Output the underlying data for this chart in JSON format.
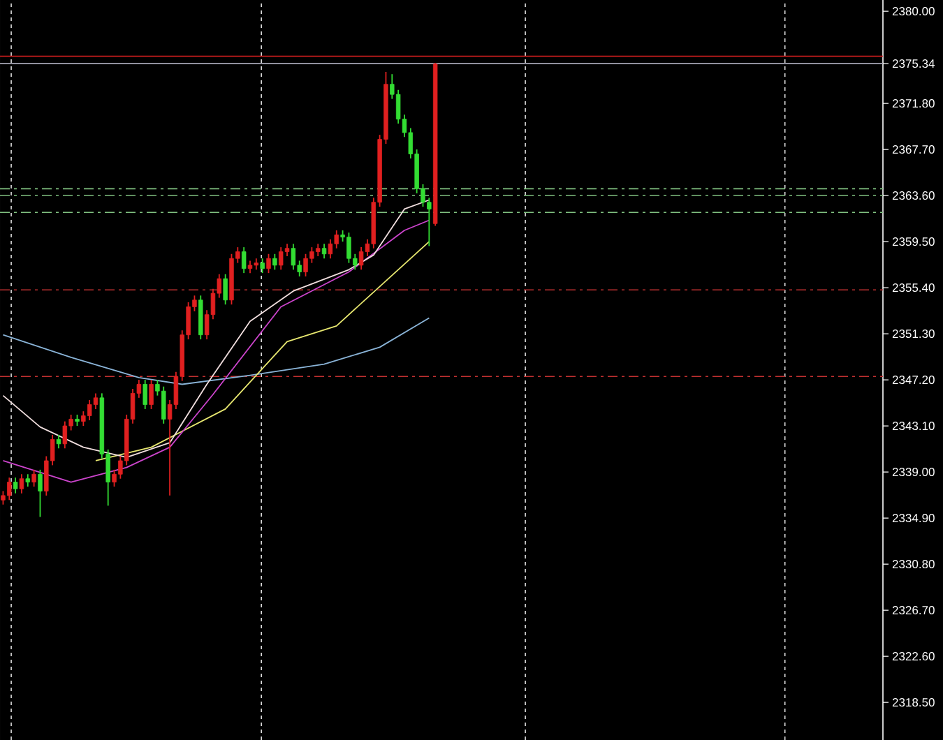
{
  "chart_data": {
    "type": "candlestick",
    "tick_labels": "y",
    "ylim": [
      2315.15,
      2381.0
    ],
    "categories": [
      null,
      null,
      null,
      null,
      null,
      null,
      null,
      null,
      null,
      null,
      null,
      null,
      null,
      null,
      null,
      null,
      null,
      null,
      null,
      null,
      null,
      null,
      null,
      null,
      null,
      null,
      null,
      null,
      null,
      null,
      null,
      null,
      null,
      null,
      null,
      null,
      null,
      null,
      null,
      null,
      null,
      null,
      null,
      null,
      null,
      null,
      null,
      null,
      null,
      null,
      null,
      null,
      null,
      null,
      null,
      null,
      null,
      null,
      null,
      null,
      null,
      null,
      null,
      null,
      null,
      null,
      null,
      null,
      null,
      null,
      null,
      null,
      null,
      null,
      null,
      null,
      null,
      null,
      null,
      null,
      null,
      null,
      null,
      null,
      null,
      null,
      null,
      null,
      null,
      null,
      null,
      null,
      null,
      null,
      null,
      null,
      null,
      null,
      null,
      null,
      null,
      null,
      null,
      null,
      null,
      null,
      null,
      null,
      null,
      null,
      null,
      null,
      null,
      null,
      null,
      null,
      null,
      null,
      null,
      null,
      null,
      null,
      null,
      null,
      null,
      null,
      null,
      null,
      null,
      null,
      null,
      null,
      null,
      null,
      null,
      null,
      null,
      null,
      null,
      null,
      null,
      null,
      null
    ],
    "ohlc": [
      [
        2336.5,
        2337.3,
        2336.1,
        2336.9
      ],
      [
        2336.9,
        2338.5,
        2336.5,
        2338.1
      ],
      [
        2338.1,
        2338.5,
        2337.1,
        2337.5
      ],
      [
        2337.5,
        2338.8,
        2337.1,
        2338.4
      ],
      [
        2338.4,
        2338.8,
        2337.7,
        2338.1
      ],
      [
        2338.1,
        2339.2,
        2337.7,
        2338.8
      ],
      [
        2338.8,
        2339.2,
        2335.0,
        2337.3
      ],
      [
        2337.3,
        2340.4,
        2336.9,
        2340.0
      ],
      [
        2340.0,
        2342.3,
        2339.6,
        2341.9
      ],
      [
        2341.9,
        2342.3,
        2341.1,
        2341.5
      ],
      [
        2341.5,
        2343.5,
        2341.1,
        2343.1
      ],
      [
        2343.1,
        2344.1,
        2342.7,
        2343.7
      ],
      [
        2343.7,
        2344.1,
        2343.1,
        2343.5
      ],
      [
        2343.5,
        2344.4,
        2343.1,
        2344.0
      ],
      [
        2344.0,
        2345.4,
        2343.6,
        2345.0
      ],
      [
        2345.0,
        2346.0,
        2344.6,
        2345.6
      ],
      [
        2345.6,
        2346.0,
        2340.2,
        2340.6
      ],
      [
        2340.6,
        2341.0,
        2336.0,
        2338.1
      ],
      [
        2338.1,
        2339.2,
        2337.7,
        2338.8
      ],
      [
        2338.8,
        2340.4,
        2338.4,
        2340.0
      ],
      [
        2340.0,
        2344.1,
        2339.6,
        2343.7
      ],
      [
        2343.7,
        2346.4,
        2343.3,
        2346.0
      ],
      [
        2346.0,
        2347.2,
        2345.6,
        2346.8
      ],
      [
        2346.8,
        2347.2,
        2344.6,
        2345.0
      ],
      [
        2345.0,
        2347.2,
        2344.6,
        2346.8
      ],
      [
        2346.8,
        2347.2,
        2345.8,
        2346.2
      ],
      [
        2346.2,
        2346.6,
        2343.3,
        2343.7
      ],
      [
        2343.7,
        2345.4,
        2336.9,
        2345.0
      ],
      [
        2345.0,
        2347.9,
        2344.6,
        2347.5
      ],
      [
        2347.5,
        2351.6,
        2347.1,
        2351.2
      ],
      [
        2351.2,
        2354.1,
        2350.8,
        2353.7
      ],
      [
        2353.7,
        2354.7,
        2353.3,
        2354.3
      ],
      [
        2354.3,
        2354.7,
        2350.8,
        2351.2
      ],
      [
        2351.2,
        2353.4,
        2350.8,
        2353.0
      ],
      [
        2353.0,
        2355.3,
        2352.6,
        2354.9
      ],
      [
        2354.9,
        2356.6,
        2354.5,
        2356.2
      ],
      [
        2356.2,
        2356.6,
        2353.9,
        2354.3
      ],
      [
        2354.3,
        2358.4,
        2353.9,
        2358.0
      ],
      [
        2358.0,
        2359.0,
        2357.6,
        2358.6
      ],
      [
        2358.6,
        2359.0,
        2356.7,
        2357.1
      ],
      [
        2357.1,
        2357.8,
        2356.7,
        2357.4
      ],
      [
        2357.4,
        2358.0,
        2357.0,
        2357.6
      ],
      [
        2357.6,
        2358.0,
        2356.7,
        2357.1
      ],
      [
        2357.1,
        2358.4,
        2356.7,
        2358.0
      ],
      [
        2358.0,
        2358.4,
        2357.0,
        2357.4
      ],
      [
        2357.4,
        2359.0,
        2357.0,
        2358.6
      ],
      [
        2358.6,
        2359.3,
        2358.2,
        2358.9
      ],
      [
        2358.9,
        2359.3,
        2357.0,
        2357.4
      ],
      [
        2357.4,
        2357.8,
        2356.4,
        2356.8
      ],
      [
        2356.8,
        2358.4,
        2356.4,
        2358.0
      ],
      [
        2358.0,
        2359.0,
        2357.6,
        2358.6
      ],
      [
        2358.6,
        2359.3,
        2358.2,
        2358.9
      ],
      [
        2358.9,
        2359.3,
        2358.0,
        2358.4
      ],
      [
        2358.4,
        2359.7,
        2358.0,
        2359.3
      ],
      [
        2359.3,
        2360.5,
        2358.9,
        2360.1
      ],
      [
        2360.1,
        2360.5,
        2359.5,
        2359.9
      ],
      [
        2359.9,
        2360.3,
        2357.6,
        2358.0
      ],
      [
        2358.0,
        2358.4,
        2357.0,
        2357.4
      ],
      [
        2357.4,
        2359.0,
        2357.0,
        2358.6
      ],
      [
        2358.6,
        2359.7,
        2358.2,
        2359.3
      ],
      [
        2359.3,
        2363.4,
        2358.9,
        2363.0
      ],
      [
        2363.0,
        2369.0,
        2362.6,
        2368.6
      ],
      [
        2368.6,
        2374.6,
        2368.2,
        2373.5
      ],
      [
        2373.5,
        2374.4,
        2372.2,
        2372.6
      ],
      [
        2372.6,
        2373.0,
        2370.0,
        2370.4
      ],
      [
        2370.4,
        2370.8,
        2368.8,
        2369.2
      ],
      [
        2369.2,
        2369.6,
        2366.9,
        2367.3
      ],
      [
        2367.3,
        2367.7,
        2363.8,
        2364.2
      ],
      [
        2364.2,
        2364.6,
        2362.6,
        2363.0
      ],
      [
        2363.0,
        2363.4,
        2359.1,
        2362.4
      ],
      [
        2361.1,
        2375.4,
        2360.9,
        2375.3
      ],
      null,
      null,
      null,
      null,
      null,
      null,
      null,
      null,
      null,
      null,
      null,
      null,
      null,
      null,
      null,
      null,
      null,
      null,
      null,
      null,
      null,
      null,
      null,
      null,
      null,
      null,
      null,
      null,
      null,
      null,
      null,
      null,
      null,
      null,
      null,
      null,
      null,
      null,
      null,
      null,
      null,
      null,
      null,
      null,
      null,
      null,
      null,
      null,
      null,
      null,
      null,
      null,
      null,
      null,
      null,
      null,
      null,
      null,
      null,
      null,
      null,
      null,
      null,
      null,
      null,
      null,
      null,
      null,
      null,
      null,
      null,
      null
    ],
    "colors": [
      "#e02020",
      "#e02020",
      "#33dd33",
      "#e02020",
      "#33dd33",
      "#e02020",
      "#33dd33",
      "#e02020",
      "#e02020",
      "#33dd33",
      "#e02020",
      "#e02020",
      "#33dd33",
      "#e02020",
      "#e02020",
      "#e02020",
      "#33dd33",
      "#33dd33",
      "#e02020",
      "#e02020",
      "#e02020",
      "#e02020",
      "#e02020",
      "#33dd33",
      "#e02020",
      "#33dd33",
      "#33dd33",
      "#e02020",
      "#e02020",
      "#e02020",
      "#e02020",
      "#e02020",
      "#33dd33",
      "#e02020",
      "#e02020",
      "#e02020",
      "#33dd33",
      "#e02020",
      "#e02020",
      "#33dd33",
      "#e02020",
      "#e02020",
      "#33dd33",
      "#e02020",
      "#33dd33",
      "#e02020",
      "#e02020",
      "#33dd33",
      "#33dd33",
      "#e02020",
      "#e02020",
      "#e02020",
      "#33dd33",
      "#e02020",
      "#e02020",
      "#33dd33",
      "#33dd33",
      "#33dd33",
      "#e02020",
      "#e02020",
      "#e02020",
      "#e02020",
      "#e02020",
      "#33dd33",
      "#33dd33",
      "#33dd33",
      "#33dd33",
      "#33dd33",
      "#33dd33",
      "#33dd33",
      "#e02020",
      null,
      null,
      null,
      null,
      null,
      null,
      null,
      null,
      null,
      null,
      null,
      null,
      null,
      null,
      null,
      null,
      null,
      null,
      null,
      null,
      null,
      null,
      null,
      null,
      null,
      null,
      null,
      null,
      null,
      null,
      null,
      null,
      null,
      null,
      null,
      null,
      null,
      null,
      null,
      null,
      null,
      null,
      null,
      null,
      null,
      null,
      null,
      null,
      null,
      null,
      null,
      null,
      null,
      null,
      null,
      null,
      null,
      null,
      null,
      null,
      null,
      null,
      null,
      null,
      null,
      null,
      null,
      null,
      null,
      null,
      null,
      null
    ],
    "yticks": [
      {
        "value": 2380.0,
        "label": "2380.00"
      },
      {
        "value": 2375.34,
        "label": "2375.34"
      },
      {
        "value": 2371.8,
        "label": "2371.80"
      },
      {
        "value": 2367.7,
        "label": "2367.70"
      },
      {
        "value": 2363.6,
        "label": "2363.60"
      },
      {
        "value": 2359.5,
        "label": "2359.50"
      },
      {
        "value": 2355.4,
        "label": "2355.40"
      },
      {
        "value": 2351.3,
        "label": "2351.30"
      },
      {
        "value": 2347.2,
        "label": "2347.20"
      },
      {
        "value": 2343.1,
        "label": "2343.10"
      },
      {
        "value": 2339.0,
        "label": "2339.00"
      },
      {
        "value": 2334.9,
        "label": "2334.90"
      },
      {
        "value": 2330.8,
        "label": "2330.80"
      },
      {
        "value": 2326.7,
        "label": "2326.70"
      },
      {
        "value": 2322.6,
        "label": "2322.60"
      },
      {
        "value": 2318.5,
        "label": "2318.50"
      }
    ],
    "ref_lines": [
      {
        "axis": "y",
        "value": 2376.0,
        "color": "#e02020",
        "line_style": "solid"
      },
      {
        "axis": "y",
        "value": 2375.34,
        "color": "#a8a8b8",
        "line_style": "solid"
      },
      {
        "axis": "y",
        "value": 2364.2,
        "color": "#80c080",
        "line_style": "dashed"
      },
      {
        "axis": "y",
        "value": 2363.6,
        "color": "#80c080",
        "line_style": "dashed"
      },
      {
        "axis": "y",
        "value": 2362.1,
        "color": "#80c080",
        "line_style": "dashed"
      },
      {
        "axis": "y",
        "value": 2355.2,
        "color": "#c03030",
        "line_style": "dashed"
      },
      {
        "axis": "y",
        "value": 2347.5,
        "color": "#c03030",
        "line_style": "dashed"
      }
    ],
    "series": [
      {
        "type": "line",
        "color": "#8ab4d8",
        "values": [
          2351.2,
          null,
          null,
          null,
          null,
          null,
          null,
          null,
          null,
          null,
          null,
          2349.2,
          null,
          null,
          null,
          null,
          null,
          null,
          null,
          null,
          null,
          null,
          2347.4,
          null,
          null,
          null,
          null,
          null,
          null,
          2346.8,
          null,
          null,
          null,
          null,
          null,
          null,
          null,
          null,
          null,
          null,
          2347.6,
          null,
          null,
          null,
          null,
          null,
          null,
          null,
          null,
          null,
          null,
          null,
          2348.6,
          null,
          null,
          null,
          null,
          null,
          null,
          null,
          null,
          2350.1,
          null,
          null,
          null,
          null,
          null,
          null,
          null,
          2352.7,
          null,
          null,
          null,
          null,
          null,
          null,
          null,
          null,
          null,
          null,
          null,
          null,
          null,
          null,
          null,
          null,
          null,
          null,
          null,
          null,
          null,
          null,
          null,
          null,
          null,
          null,
          null,
          null,
          null,
          null,
          null,
          null,
          null,
          null,
          null,
          null,
          null,
          null,
          null,
          null,
          null,
          null,
          null,
          null,
          null,
          null,
          null,
          null,
          null,
          null,
          null,
          null,
          null,
          null,
          null,
          null,
          null,
          null,
          null,
          null,
          null,
          null,
          null,
          null,
          null,
          null,
          null,
          null,
          null,
          null,
          null,
          null,
          null
        ]
      },
      {
        "type": "line",
        "color": "#e8e870",
        "values": [
          null,
          null,
          null,
          null,
          null,
          null,
          null,
          null,
          null,
          null,
          null,
          null,
          null,
          null,
          null,
          2340.0,
          null,
          null,
          null,
          null,
          null,
          null,
          null,
          null,
          2341.2,
          null,
          null,
          null,
          null,
          null,
          null,
          null,
          null,
          null,
          null,
          null,
          2344.6,
          null,
          null,
          null,
          null,
          null,
          null,
          null,
          null,
          null,
          2350.6,
          null,
          null,
          null,
          null,
          null,
          null,
          null,
          2352.0,
          null,
          null,
          null,
          null,
          null,
          null,
          null,
          null,
          2356.5,
          null,
          null,
          null,
          null,
          null,
          2359.5,
          null,
          null,
          null,
          null,
          null,
          null,
          null,
          null,
          null,
          null,
          null,
          null,
          null,
          null,
          null,
          null,
          null,
          null,
          null,
          null,
          null,
          null,
          null,
          null,
          null,
          null,
          null,
          null,
          null,
          null,
          null,
          null,
          null,
          null,
          null,
          null,
          null,
          null,
          null,
          null,
          null,
          null,
          null,
          null,
          null,
          null,
          null,
          null,
          null,
          null,
          null,
          null,
          null,
          null,
          null,
          null,
          null,
          null,
          null,
          null,
          null,
          null,
          null,
          null,
          null,
          null,
          null,
          null,
          null,
          null,
          null,
          null,
          null
        ]
      },
      {
        "type": "line",
        "color": "#cc44cc",
        "values": [
          2340.0,
          null,
          null,
          null,
          null,
          null,
          null,
          null,
          null,
          null,
          null,
          2338.1,
          null,
          null,
          null,
          null,
          null,
          null,
          null,
          null,
          2339.4,
          null,
          null,
          null,
          null,
          null,
          null,
          2341.2,
          null,
          null,
          null,
          null,
          null,
          null,
          2345.9,
          null,
          null,
          null,
          null,
          null,
          null,
          null,
          null,
          null,
          null,
          2353.7,
          null,
          null,
          null,
          null,
          null,
          null,
          null,
          null,
          null,
          null,
          2356.8,
          null,
          null,
          null,
          null,
          null,
          null,
          null,
          null,
          2360.5,
          null,
          null,
          null,
          2361.4,
          null,
          null,
          null,
          null,
          null,
          null,
          null,
          null,
          null,
          null,
          null,
          null,
          null,
          null,
          null,
          null,
          null,
          null,
          null,
          null,
          null,
          null,
          null,
          null,
          null,
          null,
          null,
          null,
          null,
          null,
          null,
          null,
          null,
          null,
          null,
          null,
          null,
          null,
          null,
          null,
          null,
          null,
          null,
          null,
          null,
          null,
          null,
          null,
          null,
          null,
          null,
          null,
          null,
          null,
          null,
          null,
          null,
          null,
          null,
          null,
          null,
          null,
          null,
          null,
          null,
          null,
          null,
          null,
          null,
          null,
          null,
          null,
          null
        ]
      },
      {
        "type": "line",
        "color": "#f0dede",
        "values": [
          2345.8,
          null,
          null,
          null,
          null,
          null,
          2343.0,
          null,
          null,
          null,
          null,
          null,
          null,
          2341.2,
          null,
          null,
          null,
          null,
          null,
          null,
          2340.3,
          null,
          null,
          null,
          null,
          null,
          null,
          2341.6,
          null,
          null,
          null,
          null,
          null,
          2346.8,
          null,
          null,
          null,
          null,
          null,
          null,
          2352.4,
          null,
          null,
          null,
          null,
          null,
          null,
          2355.1,
          null,
          null,
          null,
          null,
          null,
          null,
          null,
          null,
          2357.0,
          null,
          null,
          null,
          2358.3,
          null,
          null,
          null,
          null,
          2362.4,
          null,
          null,
          null,
          2363.2,
          null,
          null,
          null,
          null,
          null,
          null,
          null,
          null,
          null,
          null,
          null,
          null,
          null,
          null,
          null,
          null,
          null,
          null,
          null,
          null,
          null,
          null,
          null,
          null,
          null,
          null,
          null,
          null,
          null,
          null,
          null,
          null,
          null,
          null,
          null,
          null,
          null,
          null,
          null,
          null,
          null,
          null,
          null,
          null,
          null,
          null,
          null,
          null,
          null,
          null,
          null,
          null,
          null,
          null,
          null,
          null,
          null,
          null,
          null,
          null,
          null,
          null,
          null,
          null,
          null,
          null,
          null,
          null,
          null,
          null,
          null,
          null,
          null
        ]
      }
    ]
  }
}
